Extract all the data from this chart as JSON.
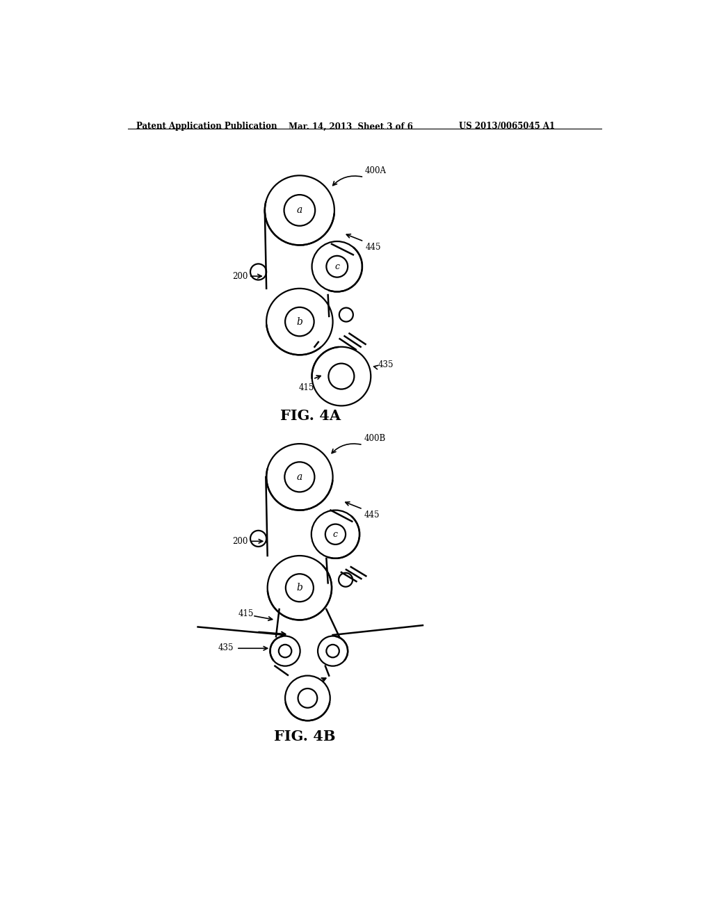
{
  "header_left": "Patent Application Publication",
  "header_mid": "Mar. 14, 2013  Sheet 3 of 6",
  "header_right": "US 2013/0065045 A1",
  "fig4a_label": "FIG. 4A",
  "fig4b_label": "FIG. 4B",
  "bg_color": "#ffffff",
  "line_color": "#000000"
}
